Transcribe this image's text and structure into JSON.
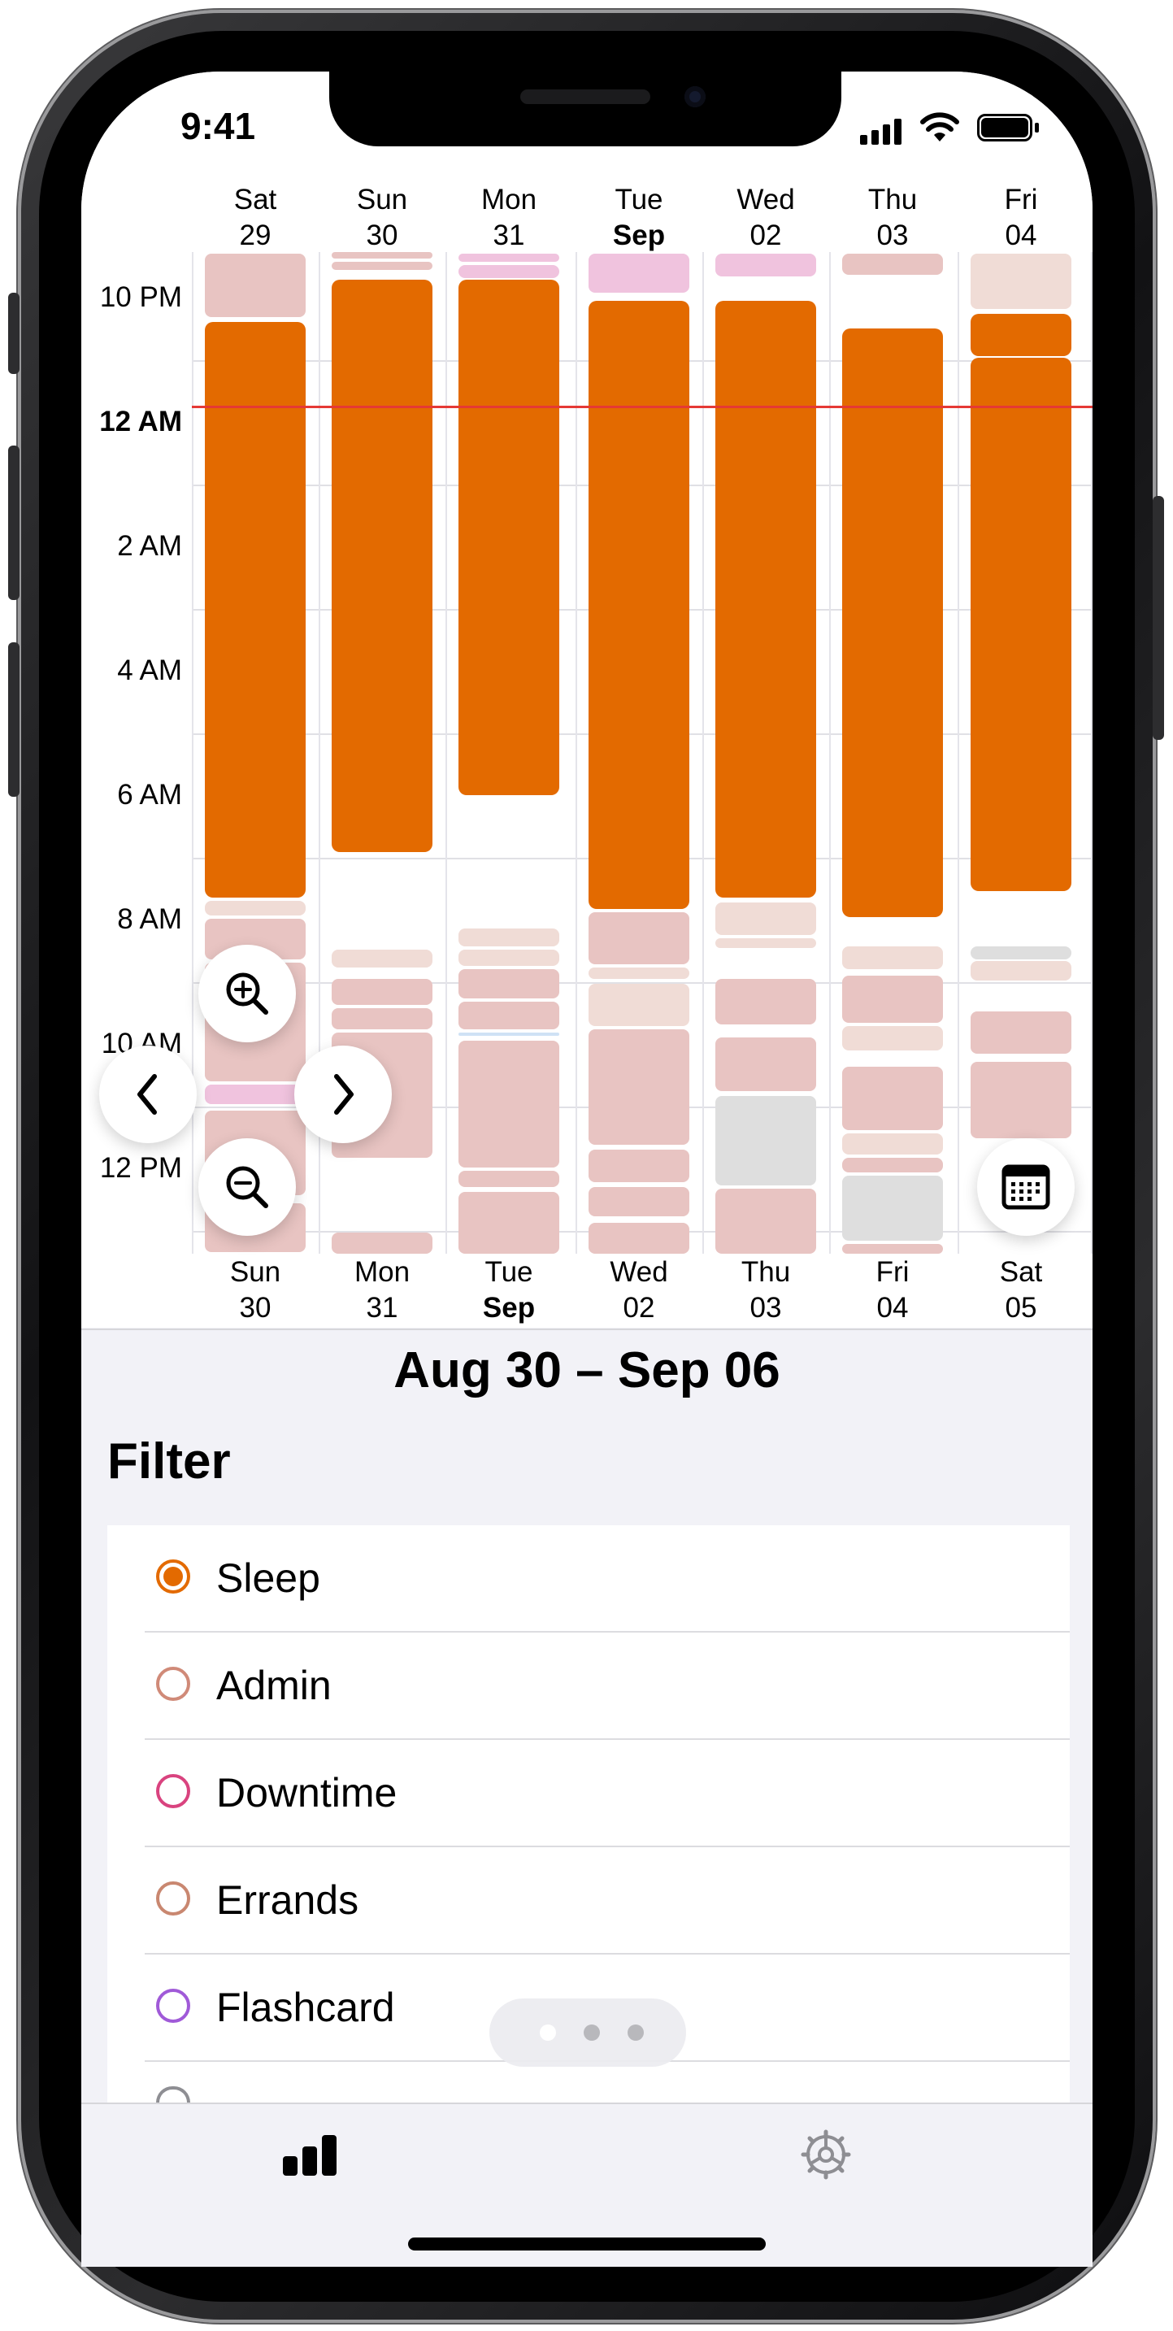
{
  "status_bar": {
    "time": "9:41"
  },
  "calendar": {
    "top_days": [
      {
        "name": "Sat",
        "date": "29",
        "bold": false
      },
      {
        "name": "Sun",
        "date": "30",
        "bold": false
      },
      {
        "name": "Mon",
        "date": "31",
        "bold": false
      },
      {
        "name": "Tue",
        "date": "Sep",
        "bold": true
      },
      {
        "name": "Wed",
        "date": "02",
        "bold": false
      },
      {
        "name": "Thu",
        "date": "03",
        "bold": false
      },
      {
        "name": "Fri",
        "date": "04",
        "bold": false
      }
    ],
    "bottom_days": [
      {
        "name": "Sun",
        "date": "30",
        "bold": false
      },
      {
        "name": "Mon",
        "date": "31",
        "bold": false
      },
      {
        "name": "Tue",
        "date": "Sep",
        "bold": true
      },
      {
        "name": "Wed",
        "date": "02",
        "bold": false
      },
      {
        "name": "Thu",
        "date": "03",
        "bold": false
      },
      {
        "name": "Fri",
        "date": "04",
        "bold": false
      },
      {
        "name": "Sat",
        "date": "05",
        "bold": false
      }
    ],
    "hour_labels": [
      "10 PM",
      "12 AM",
      "2 AM",
      "4 AM",
      "6 AM",
      "8 AM",
      "10 AM",
      "12 PM"
    ],
    "current_hour_label": "12 AM",
    "sleep_color": "#e36a00",
    "now_line_color": "#e53935"
  },
  "range_title": "Aug 30 – Sep 06",
  "filter": {
    "heading": "Filter",
    "items": [
      {
        "label": "Sleep",
        "color": "#e36a00",
        "selected": true
      },
      {
        "label": "Admin",
        "color": "#d08a78",
        "selected": false
      },
      {
        "label": "Downtime",
        "color": "#d9437f",
        "selected": false
      },
      {
        "label": "Errands",
        "color": "#c98770",
        "selected": false
      },
      {
        "label": "Flashcard",
        "color": "#a05ad8",
        "selected": false
      }
    ]
  },
  "tab_bar": {
    "items": [
      {
        "icon": "bar-chart-icon",
        "selected": true
      },
      {
        "icon": "gear-icon",
        "selected": false
      }
    ]
  },
  "page_indicator": {
    "count": 3,
    "current": 0
  },
  "icons": {
    "zoom_in": "zoom-in-icon",
    "zoom_out": "zoom-out-icon",
    "previous": "chevron-left-icon",
    "next": "chevron-right-icon",
    "calendar": "calendar-icon"
  }
}
